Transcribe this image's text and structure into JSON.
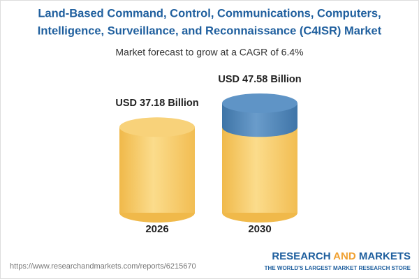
{
  "chart_data": {
    "type": "cylinder",
    "title": [
      "Land-Based Command, Control, Communications, Computers,",
      "Intelligence, Surveillance, and Reconnaissance (C4ISR) Market"
    ],
    "subtitle": "Market forecast to grow at a CAGR of 6.4%",
    "categories": [
      "2026",
      "2030"
    ],
    "values": [
      37.18,
      47.58
    ],
    "value_labels": [
      "USD 37.18 Billion",
      "USD 47.58 Billion"
    ],
    "colors": {
      "base": "#f5c55f",
      "growth": "#4f86b8"
    }
  },
  "footer": {
    "url": "https://www.researchandmarkets.com/reports/6215670",
    "logo": [
      "RESEARCH",
      "AND",
      "MARKETS"
    ],
    "tagline": "THE WORLD'S LARGEST MARKET RESEARCH STORE"
  }
}
